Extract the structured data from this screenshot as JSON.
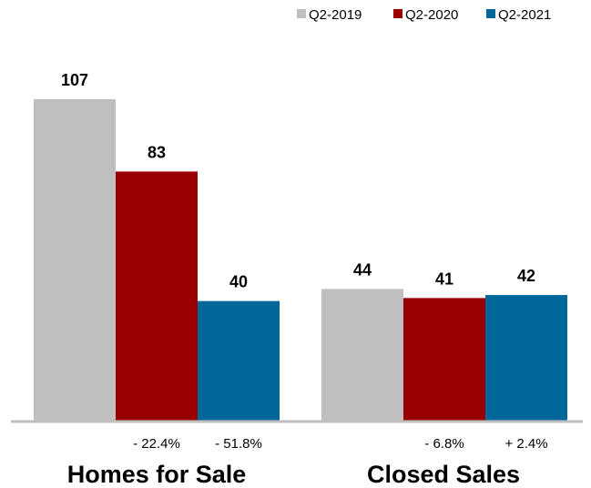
{
  "chart_data": {
    "type": "bar",
    "categories": [
      "Homes for Sale",
      "Closed Sales"
    ],
    "series": [
      {
        "name": "Q2-2019",
        "color": "#bfbfbf",
        "values": [
          107,
          44
        ]
      },
      {
        "name": "Q2-2020",
        "color": "#990000",
        "values": [
          83,
          41
        ]
      },
      {
        "name": "Q2-2021",
        "color": "#00679b",
        "values": [
          40,
          42
        ]
      }
    ],
    "changes": [
      [
        "- 22.4%",
        "- 51.8%"
      ],
      [
        "- 6.8%",
        "+ 2.4%"
      ]
    ],
    "legend_position": "top-right",
    "grid": false
  }
}
